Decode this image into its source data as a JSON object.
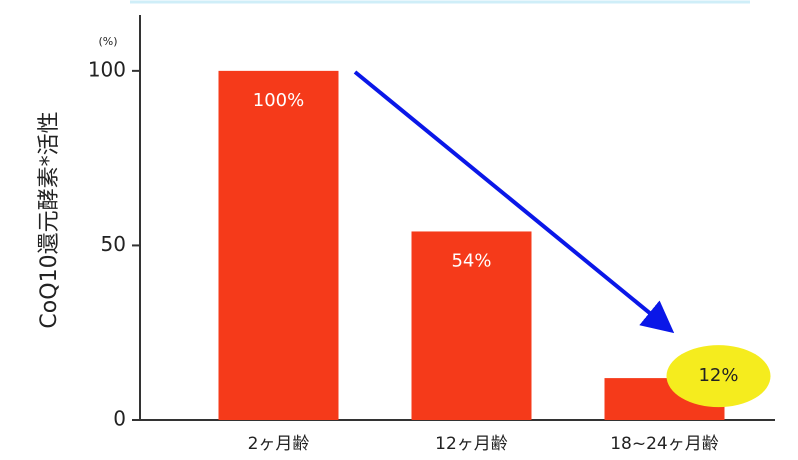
{
  "chart_data": {
    "type": "bar",
    "y_label": "CoQ10還元酵素*活性",
    "y_unit": "(%)",
    "categories": [
      "2ヶ月齢",
      "12ヶ月齢",
      "18~24ヶ月齢"
    ],
    "values": [
      100,
      54,
      12
    ],
    "value_labels": [
      "100%",
      "54%",
      "12%"
    ],
    "color": "#f53a1a",
    "ylim": [
      0,
      116
    ],
    "yticks": [
      0,
      50,
      100
    ]
  }
}
